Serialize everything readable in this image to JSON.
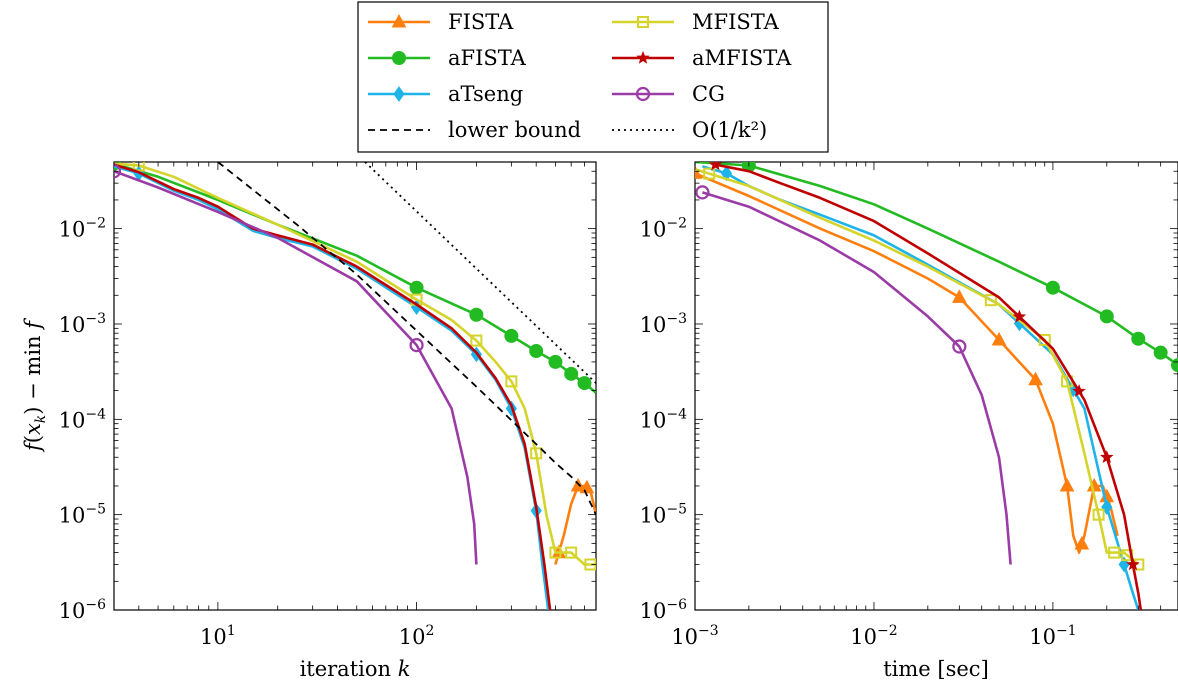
{
  "chart_data": [
    {
      "type": "line",
      "xscale": "log",
      "yscale": "log",
      "xlim": [
        3,
        800
      ],
      "ylim": [
        1e-06,
        0.05
      ],
      "xlabel": "iteration k",
      "ylabel": "f(x_k) − min f",
      "xticks": [
        {
          "value": 10,
          "label": "10^1"
        },
        {
          "value": 100,
          "label": "10^2"
        }
      ],
      "yticks": [
        {
          "value": 1e-06,
          "label": "10^-6"
        },
        {
          "value": 1e-05,
          "label": "10^-5"
        },
        {
          "value": 0.0001,
          "label": "10^-4"
        },
        {
          "value": 0.001,
          "label": "10^-3"
        },
        {
          "value": 0.01,
          "label": "10^-2"
        }
      ],
      "series": [
        {
          "name": "FISTA",
          "color": "#ff7f0e",
          "marker": "triangle",
          "x": [
            500,
            550,
            600,
            650,
            700,
            750,
            800
          ],
          "y": [
            3e-06,
            6e-06,
            1.3e-05,
            2e-05,
            2e-05,
            1.8e-05,
            1e-05
          ],
          "marker_x": [
            520,
            650,
            720
          ]
        },
        {
          "name": "aFISTA",
          "color": "#22bb22",
          "marker": "circle",
          "x": [
            3,
            5,
            10,
            20,
            50,
            100,
            200,
            300,
            400,
            500,
            600,
            700,
            800
          ],
          "y": [
            0.048,
            0.035,
            0.02,
            0.011,
            0.0052,
            0.0024,
            0.00125,
            0.00075,
            0.00052,
            0.0004,
            0.0003,
            0.00024,
            0.00019
          ],
          "marker_x": [
            3,
            100,
            200,
            300,
            400,
            500,
            600,
            700
          ]
        },
        {
          "name": "aTseng",
          "color": "#1eb4ea",
          "marker": "diamond",
          "x": [
            3,
            4,
            6,
            8,
            10,
            15,
            20,
            30,
            50,
            100,
            150,
            200,
            250,
            300,
            350,
            400,
            430,
            460
          ],
          "y": [
            0.045,
            0.038,
            0.025,
            0.02,
            0.016,
            0.0095,
            0.008,
            0.0065,
            0.0038,
            0.0015,
            0.00085,
            0.00048,
            0.00026,
            0.00013,
            5e-05,
            1.1e-05,
            3e-06,
            1e-06
          ],
          "marker_x": [
            4,
            100,
            200,
            300,
            400
          ]
        },
        {
          "name": "MFISTA",
          "color": "#d4d42a",
          "marker": "square",
          "x": [
            3,
            4,
            6,
            10,
            20,
            50,
            100,
            150,
            200,
            250,
            300,
            350,
            400,
            450,
            500,
            600,
            700,
            800
          ],
          "y": [
            0.048,
            0.046,
            0.035,
            0.021,
            0.011,
            0.0045,
            0.0018,
            0.0011,
            0.00067,
            0.0004,
            0.00025,
            0.00013,
            4.4e-05,
            1e-05,
            4e-06,
            4e-06,
            3e-06,
            3e-06
          ],
          "marker_x": [
            4,
            100,
            200,
            300,
            400,
            500,
            600,
            750
          ]
        },
        {
          "name": "aMFISTA",
          "color": "#c00000",
          "marker": "star",
          "x": [
            3,
            4,
            6,
            8,
            10,
            15,
            20,
            30,
            50,
            100,
            150,
            200,
            250,
            300,
            350,
            400,
            440,
            470
          ],
          "y": [
            0.047,
            0.039,
            0.026,
            0.021,
            0.017,
            0.01,
            0.0085,
            0.0068,
            0.004,
            0.0016,
            0.0009,
            0.0005,
            0.00027,
            0.00014,
            5.5e-05,
            1.2e-05,
            3e-06,
            1e-06
          ],
          "marker_x": []
        },
        {
          "name": "CG",
          "color": "#9b3ba6",
          "marker": "circle-open",
          "x": [
            3,
            5,
            10,
            20,
            50,
            100,
            150,
            180,
            195,
            200
          ],
          "y": [
            0.04,
            0.027,
            0.015,
            0.008,
            0.0028,
            0.0006,
            0.00013,
            2.5e-05,
            8e-06,
            3e-06
          ],
          "marker_x": [
            3,
            100
          ]
        },
        {
          "name": "lower bound",
          "color": "#000000",
          "dash": "dashed",
          "x": [
            10,
            25,
            50,
            100,
            200,
            400,
            500,
            600,
            700,
            800
          ],
          "y": [
            0.05,
            0.011,
            0.0033,
            0.00085,
            0.00022,
            5.5e-05,
            3.5e-05,
            2.5e-05,
            1.8e-05,
            1e-05
          ]
        },
        {
          "name": "O(1/k^2)",
          "color": "#000000",
          "dash": "dotted",
          "x": [
            55,
            800
          ],
          "y": [
            0.05,
            0.00024
          ]
        }
      ]
    },
    {
      "type": "line",
      "xscale": "log",
      "yscale": "log",
      "xlim": [
        0.001,
        0.5
      ],
      "ylim": [
        1e-06,
        0.05
      ],
      "xlabel": "time [sec]",
      "ylabel": "",
      "xticks": [
        {
          "value": 0.001,
          "label": "10^-3"
        },
        {
          "value": 0.01,
          "label": "10^-2"
        },
        {
          "value": 0.1,
          "label": "10^-1"
        }
      ],
      "yticks": [
        {
          "value": 1e-06,
          "label": "10^-6"
        },
        {
          "value": 1e-05,
          "label": "10^-5"
        },
        {
          "value": 0.0001,
          "label": "10^-4"
        },
        {
          "value": 0.001,
          "label": "10^-3"
        },
        {
          "value": 0.01,
          "label": "10^-2"
        }
      ],
      "series": [
        {
          "name": "FISTA",
          "color": "#ff7f0e",
          "marker": "triangle",
          "x": [
            0.001,
            0.002,
            0.005,
            0.01,
            0.02,
            0.03,
            0.05,
            0.08,
            0.1,
            0.12,
            0.13,
            0.14,
            0.15,
            0.17,
            0.19,
            0.21,
            0.23
          ],
          "y": [
            0.038,
            0.022,
            0.01,
            0.0058,
            0.003,
            0.0019,
            0.00068,
            0.00026,
            9e-05,
            2e-05,
            6e-06,
            4e-06,
            6e-06,
            2e-05,
            2e-05,
            1.2e-05,
            6e-06
          ],
          "marker_x": [
            0.001,
            0.03,
            0.05,
            0.08,
            0.12,
            0.145,
            0.17,
            0.2
          ]
        },
        {
          "name": "aFISTA",
          "color": "#22bb22",
          "marker": "circle",
          "x": [
            0.001,
            0.002,
            0.005,
            0.01,
            0.02,
            0.05,
            0.1,
            0.2,
            0.3,
            0.4,
            0.5
          ],
          "y": [
            0.05,
            0.046,
            0.028,
            0.018,
            0.01,
            0.0045,
            0.0024,
            0.0012,
            0.0007,
            0.0005,
            0.00037
          ],
          "marker_x": [
            0.002,
            0.1,
            0.2,
            0.3,
            0.4,
            0.5
          ]
        },
        {
          "name": "aTseng",
          "color": "#1eb4ea",
          "marker": "diamond",
          "x": [
            0.0011,
            0.0015,
            0.002,
            0.003,
            0.005,
            0.01,
            0.02,
            0.05,
            0.1,
            0.15,
            0.2,
            0.25,
            0.28,
            0.3
          ],
          "y": [
            0.045,
            0.038,
            0.028,
            0.02,
            0.014,
            0.0085,
            0.0042,
            0.0016,
            0.00048,
            0.00013,
            1.2e-05,
            3e-06,
            1.5e-06,
            1e-06
          ],
          "marker_x": [
            0.0015,
            0.065,
            0.13,
            0.2,
            0.25
          ]
        },
        {
          "name": "MFISTA",
          "color": "#d4d42a",
          "marker": "square",
          "x": [
            0.001,
            0.002,
            0.005,
            0.01,
            0.02,
            0.05,
            0.09,
            0.12,
            0.15,
            0.18,
            0.2,
            0.22,
            0.25,
            0.3
          ],
          "y": [
            0.042,
            0.028,
            0.013,
            0.0075,
            0.004,
            0.0016,
            0.00068,
            0.00025,
            4.4e-05,
            1e-05,
            4e-06,
            4e-06,
            4e-06,
            3e-06
          ],
          "marker_x": [
            0.0012,
            0.045,
            0.09,
            0.12,
            0.18,
            0.22,
            0.26,
            0.3
          ]
        },
        {
          "name": "aMFISTA",
          "color": "#c00000",
          "marker": "star",
          "x": [
            0.0013,
            0.002,
            0.003,
            0.005,
            0.01,
            0.02,
            0.05,
            0.1,
            0.15,
            0.2,
            0.25,
            0.28,
            0.3,
            0.31
          ],
          "y": [
            0.047,
            0.04,
            0.03,
            0.021,
            0.012,
            0.0055,
            0.0019,
            0.00055,
            0.00016,
            4e-05,
            1e-05,
            3e-06,
            1.5e-06,
            1e-06
          ],
          "marker_x": [
            0.0013,
            0.065,
            0.14,
            0.2,
            0.28
          ]
        },
        {
          "name": "CG",
          "color": "#9b3ba6",
          "marker": "circle-open",
          "x": [
            0.0011,
            0.002,
            0.005,
            0.01,
            0.02,
            0.03,
            0.04,
            0.05,
            0.055,
            0.058
          ],
          "y": [
            0.024,
            0.017,
            0.0075,
            0.0035,
            0.0012,
            0.00058,
            0.00018,
            4e-05,
            1e-05,
            3e-06
          ],
          "marker_x": [
            0.0011,
            0.03
          ]
        }
      ]
    }
  ],
  "legend": {
    "entries": [
      {
        "label": "FISTA",
        "color": "#ff7f0e",
        "marker": "triangle",
        "dash": "solid"
      },
      {
        "label": "MFISTA",
        "color": "#d4d42a",
        "marker": "square",
        "dash": "solid"
      },
      {
        "label": "aFISTA",
        "color": "#22bb22",
        "marker": "circle",
        "dash": "solid"
      },
      {
        "label": "aMFISTA",
        "color": "#c00000",
        "marker": "star",
        "dash": "solid"
      },
      {
        "label": "aTseng",
        "color": "#1eb4ea",
        "marker": "diamond",
        "dash": "solid"
      },
      {
        "label": "CG",
        "color": "#9b3ba6",
        "marker": "circle-open",
        "dash": "solid"
      },
      {
        "label": "lower bound",
        "color": "#000000",
        "marker": "none",
        "dash": "dashed"
      },
      {
        "label": "O(1/k²)",
        "color": "#000000",
        "marker": "none",
        "dash": "dotted"
      }
    ]
  }
}
